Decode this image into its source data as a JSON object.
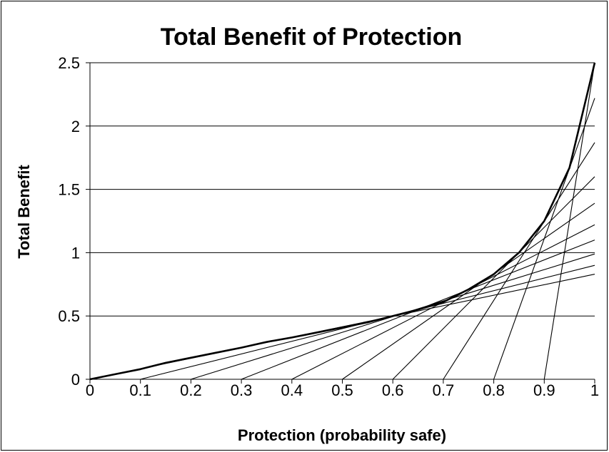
{
  "chart_data": {
    "type": "line",
    "title": "Total Benefit of Protection",
    "xlabel": "Protection (probability safe)",
    "ylabel": "Total Benefit",
    "xlim": [
      0,
      1
    ],
    "ylim": [
      0,
      2.5
    ],
    "x_ticks": [
      "0",
      "0.1",
      "0.2",
      "0.3",
      "0.4",
      "0.5",
      "0.6",
      "0.7",
      "0.8",
      "0.9",
      "1"
    ],
    "y_ticks": [
      "0",
      "0.5",
      "1",
      "1.5",
      "2",
      "2.5"
    ],
    "grid": "horizontal",
    "legend": "none",
    "line_color": "#000000",
    "series": [
      {
        "role": "envelope",
        "points": [
          [
            0,
            0
          ],
          [
            0.05,
            0.04
          ],
          [
            0.1,
            0.08
          ],
          [
            0.15,
            0.13
          ],
          [
            0.2,
            0.17
          ],
          [
            0.25,
            0.21
          ],
          [
            0.3,
            0.25
          ],
          [
            0.35,
            0.295
          ],
          [
            0.4,
            0.33
          ],
          [
            0.45,
            0.37
          ],
          [
            0.5,
            0.41
          ],
          [
            0.55,
            0.45
          ],
          [
            0.6,
            0.5
          ],
          [
            0.65,
            0.55
          ],
          [
            0.7,
            0.61
          ],
          [
            0.75,
            0.71
          ],
          [
            0.8,
            0.83
          ],
          [
            0.85,
            1.0
          ],
          [
            0.9,
            1.25
          ],
          [
            0.95,
            1.67
          ],
          [
            1,
            2.5
          ]
        ]
      },
      {
        "role": "tangent",
        "points": [
          [
            0,
            0
          ],
          [
            1,
            0.83
          ]
        ]
      },
      {
        "role": "tangent",
        "points": [
          [
            0.1,
            0
          ],
          [
            1,
            0.9
          ]
        ]
      },
      {
        "role": "tangent",
        "points": [
          [
            0.2,
            0
          ],
          [
            1,
            0.99
          ]
        ]
      },
      {
        "role": "tangent",
        "points": [
          [
            0.3,
            0
          ],
          [
            1,
            1.1
          ]
        ]
      },
      {
        "role": "tangent",
        "points": [
          [
            0.4,
            0
          ],
          [
            1,
            1.22
          ]
        ]
      },
      {
        "role": "tangent",
        "points": [
          [
            0.5,
            0
          ],
          [
            1,
            1.39
          ]
        ]
      },
      {
        "role": "tangent",
        "points": [
          [
            0.6,
            0
          ],
          [
            1,
            1.6
          ]
        ]
      },
      {
        "role": "tangent",
        "points": [
          [
            0.7,
            0
          ],
          [
            1,
            1.87
          ]
        ]
      },
      {
        "role": "tangent",
        "points": [
          [
            0.8,
            0
          ],
          [
            1,
            2.22
          ]
        ]
      },
      {
        "role": "tangent",
        "points": [
          [
            0.9,
            0
          ],
          [
            1,
            2.5
          ]
        ]
      }
    ]
  }
}
